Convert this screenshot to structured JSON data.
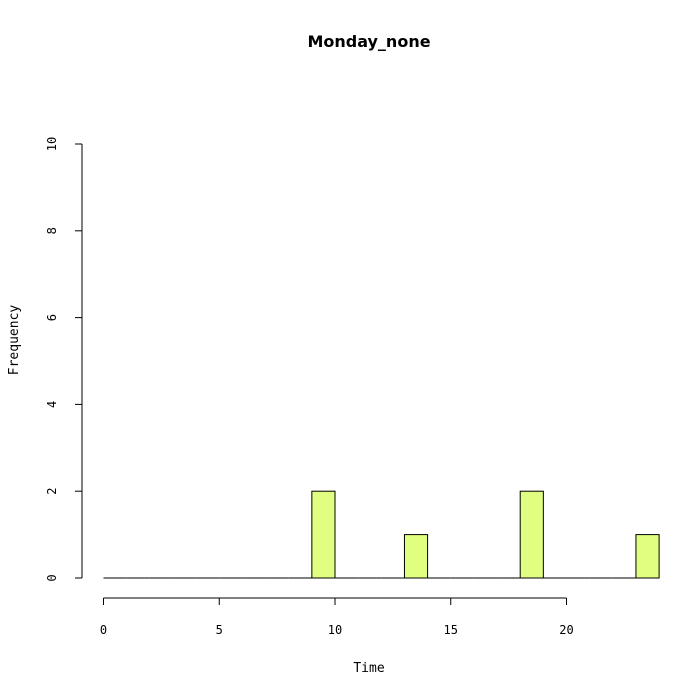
{
  "chart_data": {
    "type": "bar",
    "title": "Monday_none",
    "xlabel": "Time",
    "ylabel": "Frequency",
    "xlim": [
      0,
      24
    ],
    "ylim": [
      0,
      10
    ],
    "x_ticks": [
      0,
      5,
      10,
      15,
      20
    ],
    "y_ticks": [
      0,
      2,
      4,
      6,
      8,
      10
    ],
    "bin_width": 1,
    "bins_start": [
      0,
      1,
      2,
      3,
      4,
      5,
      6,
      7,
      8,
      9,
      10,
      11,
      12,
      13,
      14,
      15,
      16,
      17,
      18,
      19,
      20,
      21,
      22,
      23
    ],
    "values": [
      0,
      0,
      0,
      0,
      0,
      0,
      0,
      0,
      0,
      2,
      0,
      0,
      0,
      1,
      0,
      0,
      0,
      0,
      2,
      0,
      0,
      0,
      0,
      1
    ],
    "bar_color": "#e0ff80",
    "grid": false
  }
}
